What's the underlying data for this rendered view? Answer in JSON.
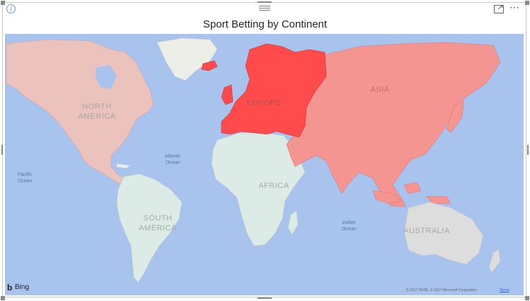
{
  "visual": {
    "title": "Sport Betting by Continent",
    "info_icon": "info-icon",
    "drag_icon": "drag-handle-icon",
    "focus_icon": "focus-mode-icon",
    "more_icon": "more-options-icon",
    "more_glyph": "⋯"
  },
  "map": {
    "ocean_color": "#a9c3ef",
    "land_color": "#eeeee9",
    "highlight_colors": {
      "Europe": "#ff4b4b",
      "Asia": "#f59591",
      "North America": "#ebc2bc",
      "South America": "#dcebe5",
      "Africa": "#dcebe5",
      "Australia": "#dddddd"
    },
    "regions": [
      {
        "name": "Europe",
        "label": "EUROPE",
        "shade": "strongest"
      },
      {
        "name": "Asia",
        "label": "ASIA",
        "shade": "strong"
      },
      {
        "name": "North America",
        "label_line1": "NORTH",
        "label_line2": "AMERICA",
        "shade": "light"
      },
      {
        "name": "South America",
        "label_line1": "SOUTH",
        "label_line2": "AMERICA",
        "shade": "faint"
      },
      {
        "name": "Africa",
        "label": "AFRICA",
        "shade": "faint"
      },
      {
        "name": "Australia",
        "label": "AUSTRALIA",
        "shade": "none"
      }
    ],
    "oceans": [
      {
        "line1": "Atlantic",
        "line2": "Ocean"
      },
      {
        "line1": "Pacific",
        "line2": "Ocean"
      },
      {
        "line1": "Indian",
        "line2": "Ocean"
      }
    ],
    "attribution": {
      "logo_text": "Bing",
      "copyright": "© 2017 HERE, © 2017 Microsoft Corporation",
      "terms": "Terms"
    }
  }
}
